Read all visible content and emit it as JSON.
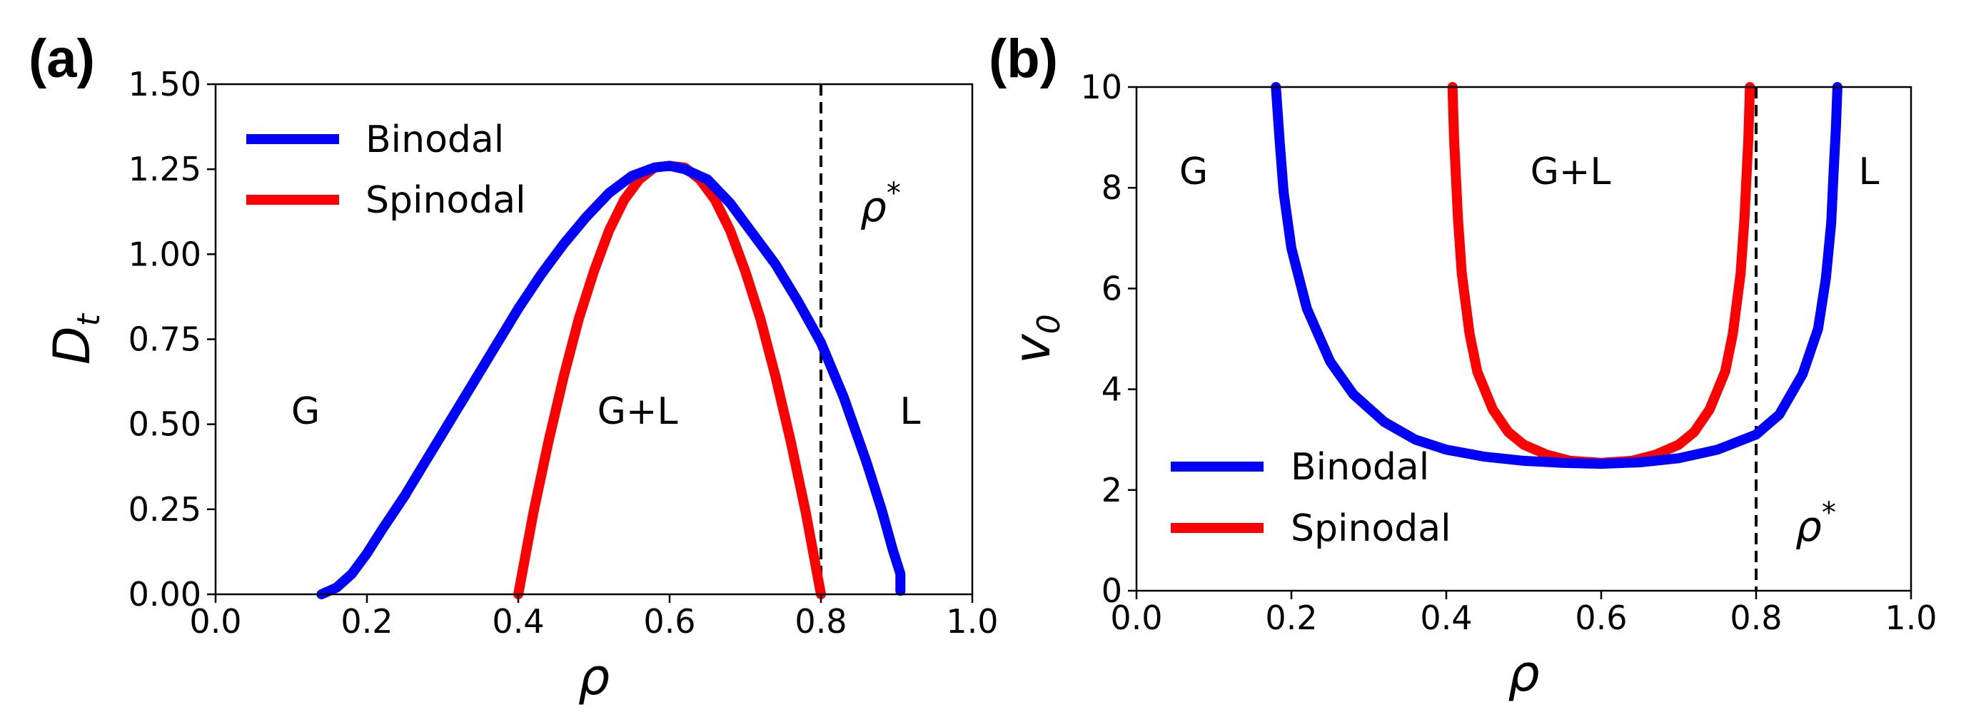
{
  "chart_data": [
    {
      "panel": "(a)",
      "type": "line",
      "xlabel": "ρ",
      "ylabel_main": "D",
      "ylabel_sub": "t",
      "xlim": [
        0.0,
        1.0
      ],
      "ylim": [
        0.0,
        1.5
      ],
      "xticks": [
        "0.0",
        "0.2",
        "0.4",
        "0.6",
        "0.8",
        "1.0"
      ],
      "yticks": [
        "0.00",
        "0.25",
        "0.50",
        "0.75",
        "1.00",
        "1.25",
        "1.50"
      ],
      "colors": {
        "binodal": "#0000ff",
        "spinodal": "#ff0000",
        "threshold": "#000000"
      },
      "series": [
        {
          "name": "Binodal",
          "x": [
            0.14,
            0.16,
            0.18,
            0.2,
            0.22,
            0.25,
            0.28,
            0.31,
            0.34,
            0.37,
            0.4,
            0.43,
            0.46,
            0.49,
            0.52,
            0.55,
            0.58,
            0.6,
            0.62,
            0.65,
            0.68,
            0.71,
            0.74,
            0.77,
            0.8,
            0.83,
            0.86,
            0.88,
            0.895,
            0.905,
            0.905
          ],
          "values": [
            0.0,
            0.02,
            0.06,
            0.12,
            0.19,
            0.29,
            0.4,
            0.51,
            0.62,
            0.73,
            0.84,
            0.94,
            1.03,
            1.11,
            1.18,
            1.23,
            1.255,
            1.26,
            1.25,
            1.22,
            1.15,
            1.06,
            0.97,
            0.86,
            0.74,
            0.58,
            0.39,
            0.25,
            0.13,
            0.06,
            0.01
          ]
        },
        {
          "name": "Spinodal",
          "x": [
            0.4,
            0.42,
            0.44,
            0.46,
            0.48,
            0.5,
            0.52,
            0.54,
            0.56,
            0.58,
            0.6,
            0.62,
            0.64,
            0.66,
            0.68,
            0.7,
            0.72,
            0.74,
            0.76,
            0.78,
            0.8
          ],
          "values": [
            0.0,
            0.24,
            0.45,
            0.64,
            0.81,
            0.95,
            1.07,
            1.16,
            1.22,
            1.255,
            1.26,
            1.255,
            1.22,
            1.16,
            1.07,
            0.95,
            0.81,
            0.64,
            0.45,
            0.24,
            0.0
          ]
        }
      ],
      "threshold_x": 0.8,
      "threshold_label": "ρ",
      "threshold_sup": "*",
      "region_labels": {
        "gas": "G",
        "coexistence": "G+L",
        "liquid": "L"
      },
      "legend": [
        "Binodal",
        "Spinodal"
      ]
    },
    {
      "panel": "(b)",
      "type": "line",
      "xlabel": "ρ",
      "ylabel_main": "v",
      "ylabel_sub": "0",
      "xlim": [
        0.0,
        1.0
      ],
      "ylim": [
        0,
        10
      ],
      "xticks": [
        "0.0",
        "0.2",
        "0.4",
        "0.6",
        "0.8",
        "1.0"
      ],
      "yticks": [
        "0",
        "2",
        "4",
        "6",
        "8",
        "10"
      ],
      "colors": {
        "binodal": "#0000ff",
        "spinodal": "#ff0000",
        "threshold": "#000000"
      },
      "series": [
        {
          "name": "Binodal",
          "x": [
            0.18,
            0.185,
            0.19,
            0.2,
            0.22,
            0.25,
            0.28,
            0.32,
            0.36,
            0.4,
            0.45,
            0.5,
            0.55,
            0.6,
            0.65,
            0.7,
            0.75,
            0.8,
            0.83,
            0.86,
            0.88,
            0.89,
            0.897,
            0.9,
            0.903,
            0.905
          ],
          "values": [
            10.0,
            8.9,
            7.9,
            6.8,
            5.6,
            4.55,
            3.9,
            3.35,
            3.0,
            2.8,
            2.66,
            2.58,
            2.54,
            2.52,
            2.55,
            2.63,
            2.8,
            3.1,
            3.5,
            4.3,
            5.2,
            6.2,
            7.3,
            8.3,
            9.2,
            10.0
          ]
        },
        {
          "name": "Spinodal",
          "x": [
            0.408,
            0.41,
            0.415,
            0.42,
            0.43,
            0.44,
            0.46,
            0.48,
            0.5,
            0.53,
            0.56,
            0.6,
            0.64,
            0.67,
            0.7,
            0.72,
            0.74,
            0.76,
            0.77,
            0.78,
            0.785,
            0.79,
            0.792
          ],
          "values": [
            10.0,
            9.0,
            7.4,
            6.3,
            5.1,
            4.35,
            3.6,
            3.15,
            2.9,
            2.7,
            2.58,
            2.54,
            2.58,
            2.7,
            2.9,
            3.15,
            3.6,
            4.35,
            5.1,
            6.3,
            7.4,
            9.0,
            10.0
          ]
        }
      ],
      "threshold_x": 0.8,
      "threshold_label": "ρ",
      "threshold_sup": "*",
      "region_labels": {
        "gas": "G",
        "coexistence": "G+L",
        "liquid": "L"
      },
      "legend": [
        "Binodal",
        "Spinodal"
      ]
    }
  ]
}
